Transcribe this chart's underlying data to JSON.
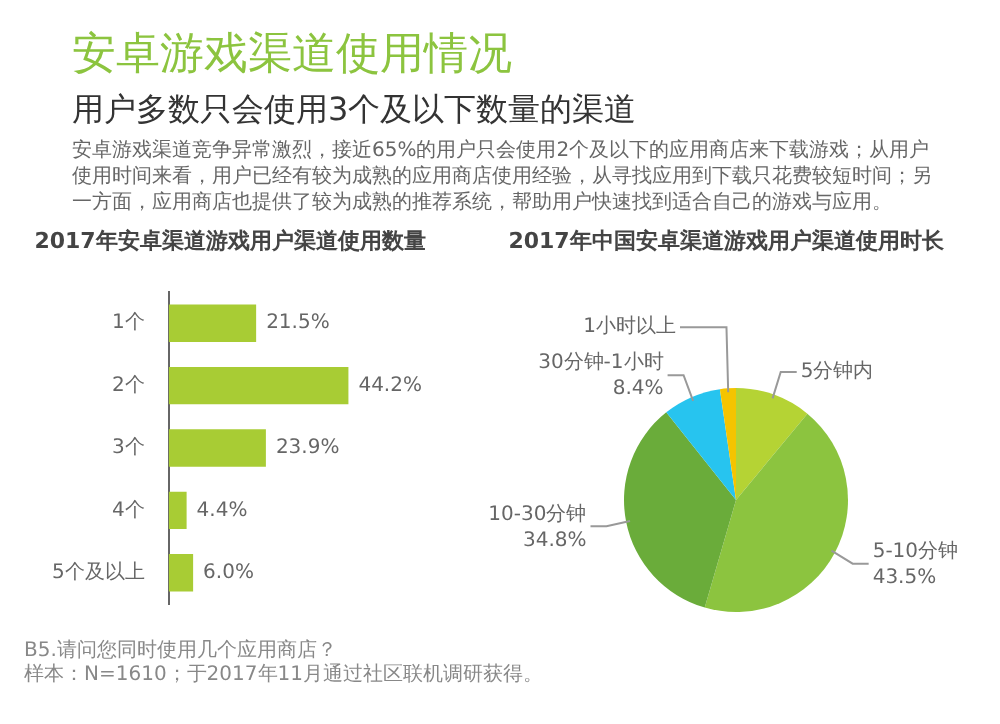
{
  "chart_data": [
    {
      "type": "other",
      "title": "安卓游戏渠道使用情况",
      "subtitle": "用户多数只会使用3个及以下数量的渠道",
      "annotations": [
        "安卓游戏渠道竞争异常激烈，接近65%的用户只会使用2个及以下的应用商店来下载游戏；从用户使用时间来看，用户已经有较为成熟的应用商店使用经验，从寻找应用到下载只花费较短时间；另一方面，应用商店也提供了较为成熟的推荐系统，帮助用户快速找到适合自己的游戏与应用。"
      ]
    },
    {
      "type": "bar",
      "orientation": "horizontal",
      "title": "2017年安卓渠道游戏用户渠道使用数量",
      "categories": [
        "1个",
        "2个",
        "3个",
        "4个",
        "5个及以上"
      ],
      "values": [
        21.5,
        44.2,
        23.9,
        4.4,
        6.0
      ],
      "value_labels": [
        "21.5%",
        "44.2%",
        "23.9%",
        "4.4%",
        "6.0%"
      ],
      "color": "#a8cc34",
      "tick_labels": "y",
      "annotations": [
        "B5.请问您同时使用几个应用商店？",
        "样本：N=1610；于2017年11月通过社区联机调研获得。"
      ]
    },
    {
      "type": "pie",
      "title": "2017年中国安卓渠道游戏用户渠道使用时长",
      "categories": [
        "5分钟内",
        "5-10分钟",
        "10-30分钟",
        "30分钟-1小时",
        "1小时以上"
      ],
      "values": [
        11.0,
        43.5,
        34.8,
        8.4,
        2.3
      ],
      "value_labels": [
        null,
        "43.5%",
        "34.8%",
        "8.4%",
        null
      ],
      "colors": [
        "#b5d334",
        "#8cc43f",
        "#6aac3a",
        "#27c4ef",
        "#f5c400"
      ]
    }
  ]
}
